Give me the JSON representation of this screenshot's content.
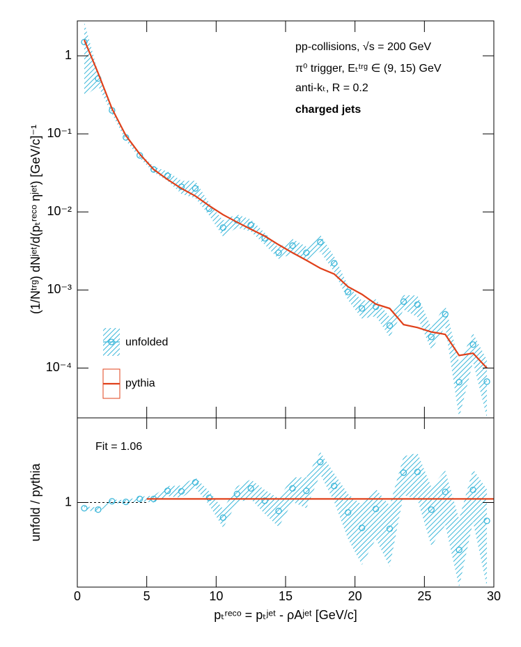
{
  "chart_data": [
    {
      "type": "line",
      "y_label": "(1/Nᵗʳᵍ) dNʲᵉᵗ/d(pₜʳᵉᶜᵒ ηʲᵉᵗ) [GeV/c]⁻¹",
      "annotations": [
        "pp-collisions, √s = 200 GeV",
        "π⁰ trigger, Eₜᵗʳᵍ ∈ (9, 15) GeV",
        "anti-kₜ, R = 0.2",
        "charged jets"
      ],
      "log_y": true,
      "xlim": [
        0,
        30
      ],
      "xticks": [
        0,
        5,
        10,
        15,
        20,
        25,
        30
      ],
      "ylim": [
        2.3e-05,
        2.8
      ],
      "yticks": [
        {
          "value": 0.0001,
          "label": "10⁻⁴"
        },
        {
          "value": 0.001,
          "label": "10⁻³"
        },
        {
          "value": 0.01,
          "label": "10⁻²"
        },
        {
          "value": 0.1,
          "label": "10⁻¹"
        },
        1
      ],
      "x": [
        0.5,
        1.5,
        2.5,
        3.5,
        4.5,
        5.5,
        6.5,
        7.5,
        8.5,
        9.5,
        10.5,
        11.5,
        12.5,
        13.5,
        14.5,
        15.5,
        16.5,
        17.5,
        18.5,
        19.5,
        20.5,
        21.5,
        22.5,
        23.5,
        24.5,
        25.5,
        26.5,
        27.5,
        28.5,
        29.5
      ],
      "series": [
        {
          "name": "unfolded",
          "color": "#3ab6d9",
          "values": [
            1.5,
            0.51,
            0.2,
            0.09,
            0.053,
            0.035,
            0.029,
            0.021,
            0.02,
            0.011,
            0.0063,
            0.0078,
            0.0068,
            0.0046,
            0.003,
            0.0037,
            0.003,
            0.0041,
            0.0022,
            0.00094,
            0.00058,
            0.00061,
            0.00035,
            0.00071,
            0.00065,
            0.00025,
            0.00049,
            6.6e-05,
            0.0002,
            6.7e-05
          ],
          "errors": [
            1.2,
            0.1,
            0.02,
            0.008,
            0.004,
            0.003,
            0.004,
            0.004,
            0.005,
            0.002,
            0.0015,
            0.0015,
            0.0012,
            0.0008,
            0.0005,
            0.0008,
            0.0006,
            0.001,
            0.0005,
            0.0002,
            0.00015,
            0.00015,
            0.0001,
            0.00015,
            0.0002,
            8e-05,
            0.00015,
            5e-05,
            8e-05,
            6e-05
          ]
        },
        {
          "name": "pythia",
          "color": "#e0401a",
          "values": [
            1.6,
            0.6,
            0.21,
            0.095,
            0.055,
            0.035,
            0.026,
            0.02,
            0.016,
            0.012,
            0.0092,
            0.0074,
            0.006,
            0.0049,
            0.0038,
            0.003,
            0.0024,
            0.0019,
            0.0016,
            0.0011,
            0.00088,
            0.00066,
            0.00058,
            0.00036,
            0.00033,
            0.00029,
            0.00027,
            0.000145,
            0.000155,
            0.0001
          ]
        }
      ]
    },
    {
      "type": "ratio",
      "x_label": "pₜʳᵉᶜᵒ = pₜʲᵉᵗ - ρAʲᵉᵗ [GeV/c]",
      "y_label": "unfold / pythia",
      "log_y": true,
      "xlim": [
        0,
        30
      ],
      "xticks": [
        0,
        5,
        10,
        15,
        20,
        25,
        30
      ],
      "ylim": [
        0.25,
        4
      ],
      "yticks": [
        1
      ],
      "x": [
        0.5,
        1.5,
        2.5,
        3.5,
        4.5,
        5.5,
        6.5,
        7.5,
        8.5,
        9.5,
        10.5,
        11.5,
        12.5,
        13.5,
        14.5,
        15.5,
        16.5,
        17.5,
        18.5,
        19.5,
        20.5,
        21.5,
        22.5,
        23.5,
        24.5,
        25.5,
        26.5,
        27.5,
        28.5,
        29.5
      ],
      "series": [
        {
          "color": "#3ab6d9",
          "values": [
            0.91,
            0.89,
            1.02,
            1.01,
            1.06,
            1.06,
            1.21,
            1.2,
            1.39,
            1.08,
            0.78,
            1.15,
            1.26,
            1.03,
            0.87,
            1.26,
            1.21,
            1.94,
            1.31,
            0.85,
            0.66,
            0.9,
            0.65,
            1.63,
            1.65,
            0.89,
            1.19,
            0.46,
            1.23,
            0.74
          ],
          "errors": [
            0.03,
            0.03,
            0.03,
            0.03,
            0.04,
            0.06,
            0.1,
            0.12,
            0.12,
            0.12,
            0.12,
            0.15,
            0.2,
            0.2,
            0.2,
            0.25,
            0.3,
            0.35,
            0.3,
            0.3,
            0.3,
            0.35,
            0.3,
            0.5,
            0.6,
            0.4,
            0.5,
            0.3,
            0.5,
            0.5
          ]
        }
      ],
      "fit": {
        "value": 1.06,
        "label": "Fit = 1.06",
        "x_range": [
          5,
          30
        ],
        "color": "#e0401a"
      }
    }
  ]
}
